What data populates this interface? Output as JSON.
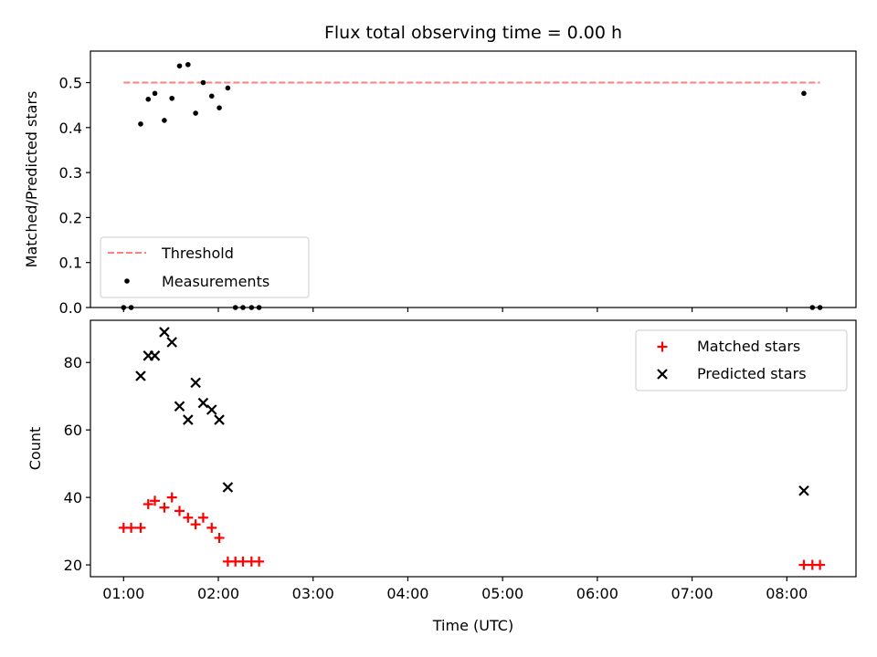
{
  "chart_data": [
    {
      "type": "scatter",
      "title": "Flux total observing time = 0.00 h",
      "xlabel": "",
      "ylabel": "Matched/Predicted stars",
      "xlim": [
        0.65,
        8.73
      ],
      "ylim": [
        0,
        0.57
      ],
      "xticks": [
        1,
        2,
        3,
        4,
        5,
        6,
        7,
        8
      ],
      "xticklabels": [
        "",
        "",
        "",
        "",
        "",
        "",
        "",
        ""
      ],
      "yticks": [
        0,
        0.1,
        0.2,
        0.3,
        0.4,
        0.5
      ],
      "yticklabels": [
        "0.0",
        "0.1",
        "0.2",
        "0.3",
        "0.4",
        "0.5"
      ],
      "grid": false,
      "legend_position": "lower-left",
      "legend": [
        "Threshold",
        "Measurements"
      ],
      "threshold": {
        "name": "Threshold",
        "y": 0.5,
        "x": [
          1.0,
          8.35
        ],
        "color": "#ff7f7f",
        "style": "dashed"
      },
      "series": [
        {
          "name": "Measurements",
          "marker": "dot",
          "color": "#000000",
          "x": [
            1.0,
            1.08,
            1.18,
            1.26,
            1.33,
            1.43,
            1.51,
            1.59,
            1.68,
            1.76,
            1.84,
            1.93,
            2.01,
            2.1,
            2.18,
            2.26,
            2.35,
            2.43,
            8.18,
            8.27,
            8.35
          ],
          "y": [
            0.0,
            0.0,
            0.408,
            0.463,
            0.476,
            0.416,
            0.465,
            0.537,
            0.54,
            0.432,
            0.5,
            0.47,
            0.444,
            0.488,
            0.0,
            0.0,
            0.0,
            0.0,
            0.476,
            0.0,
            0.0
          ]
        }
      ]
    },
    {
      "type": "scatter",
      "title": "",
      "xlabel": "Time (UTC)",
      "ylabel": "Count",
      "xlim": [
        0.65,
        8.73
      ],
      "ylim": [
        16.5,
        92.5
      ],
      "xticks": [
        1,
        2,
        3,
        4,
        5,
        6,
        7,
        8
      ],
      "xticklabels": [
        "01:00",
        "02:00",
        "03:00",
        "04:00",
        "05:00",
        "06:00",
        "07:00",
        "08:00"
      ],
      "yticks": [
        20,
        40,
        60,
        80
      ],
      "yticklabels": [
        "20",
        "40",
        "60",
        "80"
      ],
      "grid": false,
      "legend_position": "upper-right",
      "legend": [
        "Matched stars",
        "Predicted stars"
      ],
      "series": [
        {
          "name": "Matched stars",
          "marker": "plus",
          "color": "#ff0000",
          "x": [
            1.0,
            1.08,
            1.18,
            1.26,
            1.33,
            1.43,
            1.51,
            1.59,
            1.68,
            1.76,
            1.84,
            1.93,
            2.01,
            2.1,
            2.18,
            2.26,
            2.35,
            2.43,
            8.18,
            8.27,
            8.35
          ],
          "y": [
            31,
            31,
            31,
            38,
            39,
            37,
            40,
            36,
            34,
            32,
            34,
            31,
            28,
            21,
            21,
            21,
            21,
            21,
            20,
            20,
            20
          ]
        },
        {
          "name": "Predicted stars",
          "marker": "x",
          "color": "#000000",
          "x": [
            1.18,
            1.26,
            1.33,
            1.43,
            1.51,
            1.59,
            1.68,
            1.76,
            1.84,
            1.93,
            2.01,
            2.1,
            8.18
          ],
          "y": [
            76,
            82,
            82,
            89,
            86,
            67,
            63,
            74,
            68,
            66,
            63,
            43,
            42
          ]
        }
      ]
    }
  ]
}
